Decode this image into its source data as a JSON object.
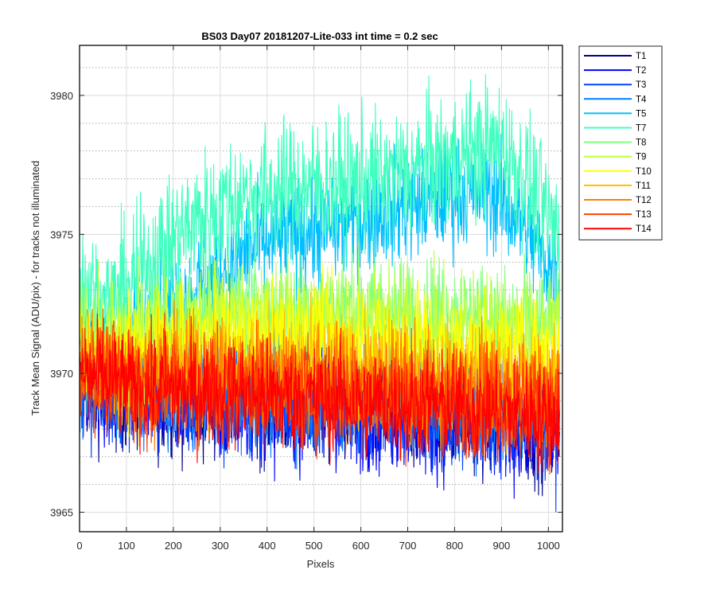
{
  "chart_data": {
    "type": "line",
    "title": "BS03 Day07 20181207-Lite-033 int time = 0.2 sec",
    "xlabel": "Pixels",
    "ylabel": "Track Mean Signal (ADU/pix) - for tracks not illuminated",
    "xlim": [
      0,
      1030
    ],
    "ylim": [
      3964.3,
      3981.8
    ],
    "xticks": [
      0,
      100,
      200,
      300,
      400,
      500,
      600,
      700,
      800,
      900,
      1000
    ],
    "yticks": [
      3965,
      3970,
      3975,
      3980
    ],
    "major_grid": true,
    "minor_grid_y": true,
    "legend_position": "outside-right-top",
    "series": [
      {
        "name": "T1",
        "color": "#00008f",
        "anchors": [
          [
            0,
            3969.6
          ],
          [
            100,
            3969.2
          ],
          [
            300,
            3969.0
          ],
          [
            500,
            3968.8
          ],
          [
            700,
            3968.6
          ],
          [
            900,
            3968.3
          ],
          [
            1024,
            3968.0
          ]
        ],
        "noise": 1.0
      },
      {
        "name": "T2",
        "color": "#0000ff",
        "anchors": [
          [
            0,
            3969.7
          ],
          [
            100,
            3969.2
          ],
          [
            300,
            3969.0
          ],
          [
            500,
            3968.8
          ],
          [
            700,
            3968.5
          ],
          [
            900,
            3968.2
          ],
          [
            1024,
            3967.9
          ]
        ],
        "noise": 1.05
      },
      {
        "name": "T3",
        "color": "#0040ff",
        "anchors": [
          [
            0,
            3969.8
          ],
          [
            100,
            3969.3
          ],
          [
            300,
            3969.1
          ],
          [
            500,
            3968.9
          ],
          [
            700,
            3968.6
          ],
          [
            900,
            3968.3
          ],
          [
            1024,
            3968.0
          ]
        ],
        "noise": 1.0
      },
      {
        "name": "T4",
        "color": "#0080ff",
        "anchors": [
          [
            0,
            3970.0
          ],
          [
            100,
            3969.5
          ],
          [
            300,
            3969.3
          ],
          [
            500,
            3969.2
          ],
          [
            700,
            3969.0
          ],
          [
            900,
            3968.8
          ],
          [
            1024,
            3968.6
          ]
        ],
        "noise": 1.0
      },
      {
        "name": "T5",
        "color": "#00bfff",
        "anchors": [
          [
            0,
            3971.5
          ],
          [
            50,
            3970.8
          ],
          [
            150,
            3971.8
          ],
          [
            250,
            3973.0
          ],
          [
            350,
            3974.3
          ],
          [
            450,
            3975.0
          ],
          [
            550,
            3975.3
          ],
          [
            650,
            3975.8
          ],
          [
            750,
            3976.3
          ],
          [
            850,
            3976.6
          ],
          [
            900,
            3976.3
          ],
          [
            950,
            3975.2
          ],
          [
            1000,
            3974.0
          ],
          [
            1024,
            3973.2
          ]
        ],
        "noise": 1.0
      },
      {
        "name": "T7",
        "color": "#40ffbf",
        "anchors": [
          [
            0,
            3973.5
          ],
          [
            50,
            3972.3
          ],
          [
            100,
            3973.0
          ],
          [
            150,
            3974.0
          ],
          [
            250,
            3975.5
          ],
          [
            350,
            3976.3
          ],
          [
            450,
            3976.7
          ],
          [
            550,
            3976.8
          ],
          [
            650,
            3977.0
          ],
          [
            750,
            3977.5
          ],
          [
            850,
            3978.0
          ],
          [
            900,
            3978.2
          ],
          [
            950,
            3977.0
          ],
          [
            1000,
            3975.5
          ],
          [
            1024,
            3975.0
          ]
        ],
        "noise": 1.2
      },
      {
        "name": "T8",
        "color": "#80ff80",
        "anchors": [
          [
            0,
            3972.2
          ],
          [
            50,
            3971.2
          ],
          [
            150,
            3971.8
          ],
          [
            300,
            3972.2
          ],
          [
            450,
            3972.3
          ],
          [
            600,
            3972.3
          ],
          [
            750,
            3972.1
          ],
          [
            900,
            3971.9
          ],
          [
            1024,
            3971.7
          ]
        ],
        "noise": 1.0
      },
      {
        "name": "T9",
        "color": "#bfff40",
        "anchors": [
          [
            0,
            3971.8
          ],
          [
            50,
            3971.0
          ],
          [
            150,
            3971.5
          ],
          [
            300,
            3971.9
          ],
          [
            450,
            3972.0
          ],
          [
            600,
            3972.0
          ],
          [
            750,
            3971.8
          ],
          [
            900,
            3971.6
          ],
          [
            1024,
            3971.3
          ]
        ],
        "noise": 1.0
      },
      {
        "name": "T10",
        "color": "#ffff00",
        "anchors": [
          [
            0,
            3971.2
          ],
          [
            50,
            3970.5
          ],
          [
            150,
            3970.9
          ],
          [
            300,
            3971.2
          ],
          [
            450,
            3971.3
          ],
          [
            600,
            3971.2
          ],
          [
            750,
            3971.0
          ],
          [
            900,
            3970.8
          ],
          [
            1024,
            3970.6
          ]
        ],
        "noise": 1.0
      },
      {
        "name": "T11",
        "color": "#ffbf00",
        "anchors": [
          [
            0,
            3970.6
          ],
          [
            100,
            3970.1
          ],
          [
            300,
            3970.3
          ],
          [
            500,
            3970.2
          ],
          [
            700,
            3969.9
          ],
          [
            900,
            3969.7
          ],
          [
            1024,
            3969.5
          ]
        ],
        "noise": 1.0
      },
      {
        "name": "T12",
        "color": "#ff8000",
        "anchors": [
          [
            0,
            3970.4
          ],
          [
            100,
            3969.9
          ],
          [
            300,
            3969.9
          ],
          [
            500,
            3969.7
          ],
          [
            700,
            3969.5
          ],
          [
            900,
            3969.3
          ],
          [
            1024,
            3969.1
          ]
        ],
        "noise": 1.0
      },
      {
        "name": "T13",
        "color": "#ff4000",
        "anchors": [
          [
            0,
            3970.2
          ],
          [
            100,
            3969.7
          ],
          [
            300,
            3969.6
          ],
          [
            500,
            3969.4
          ],
          [
            700,
            3969.2
          ],
          [
            900,
            3969.0
          ],
          [
            1024,
            3968.8
          ]
        ],
        "noise": 1.0
      },
      {
        "name": "T14",
        "color": "#ff0000",
        "anchors": [
          [
            0,
            3970.0
          ],
          [
            100,
            3969.5
          ],
          [
            300,
            3969.3
          ],
          [
            500,
            3969.1
          ],
          [
            700,
            3968.9
          ],
          [
            900,
            3968.6
          ],
          [
            1024,
            3968.4
          ]
        ],
        "noise": 0.95
      }
    ]
  }
}
